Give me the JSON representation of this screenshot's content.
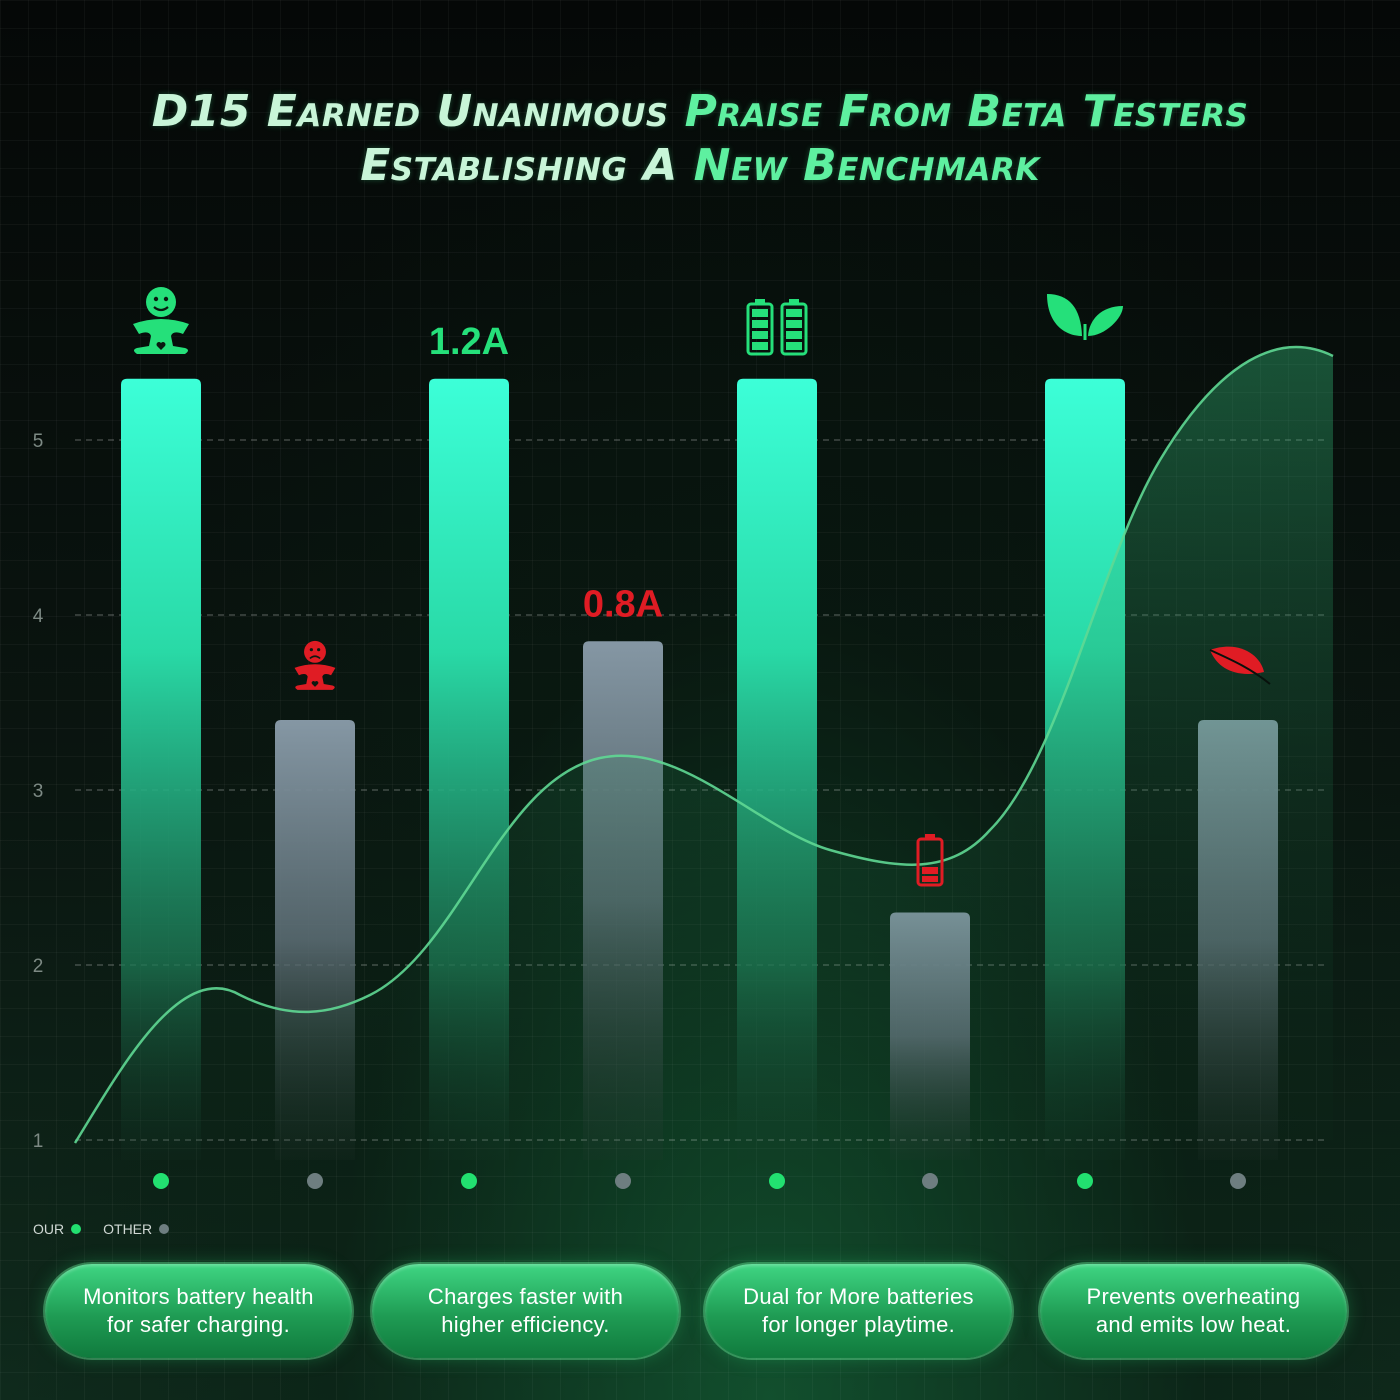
{
  "title": {
    "line1_white": "D15 Earned Unanimous",
    "line1_green": "Praise From Beta Testers",
    "line2_white": "Establishing A",
    "line2_green": "New Benchmark"
  },
  "chart_data": {
    "type": "bar",
    "ylim": [
      1,
      5.6
    ],
    "yticks": [
      1,
      2,
      3,
      4,
      5
    ],
    "grid": true,
    "series": [
      {
        "name": "OUR",
        "color": "#2ef0c0",
        "dot_color": "#22e070",
        "values": [
          5.35,
          5.35,
          5.35,
          5.35
        ]
      },
      {
        "name": "OTHER",
        "color": "#7a8a96",
        "dot_color": "#6e7e80",
        "values": [
          3.4,
          3.85,
          2.3,
          3.4
        ]
      }
    ],
    "annotations": [
      {
        "bar": "OUR-1",
        "icon": "happy-figure-icon",
        "color": "#25e07a"
      },
      {
        "bar": "OTHER-1",
        "icon": "sad-figure-icon",
        "color": "#e01c24"
      },
      {
        "bar": "OUR-2",
        "text": "1.2A",
        "color": "#25e07a"
      },
      {
        "bar": "OTHER-2",
        "text": "0.8A",
        "color": "#e01c24"
      },
      {
        "bar": "OUR-3",
        "icon": "dual-battery-full-icon",
        "color": "#25e07a"
      },
      {
        "bar": "OTHER-3",
        "icon": "battery-low-icon",
        "color": "#e01c24"
      },
      {
        "bar": "OUR-4",
        "icon": "sprout-leaves-icon",
        "color": "#25e07a"
      },
      {
        "bar": "OTHER-4",
        "icon": "single-leaf-icon",
        "color": "#e01c24"
      }
    ]
  },
  "legend": {
    "our": "OUR",
    "other": "OTHER"
  },
  "features": [
    "Monitors battery health\nfor safer charging.",
    "Charges faster with\nhigher efficiency.",
    "Dual for More batteries\nfor longer playtime.",
    "Prevents overheating\nand emits low heat."
  ]
}
